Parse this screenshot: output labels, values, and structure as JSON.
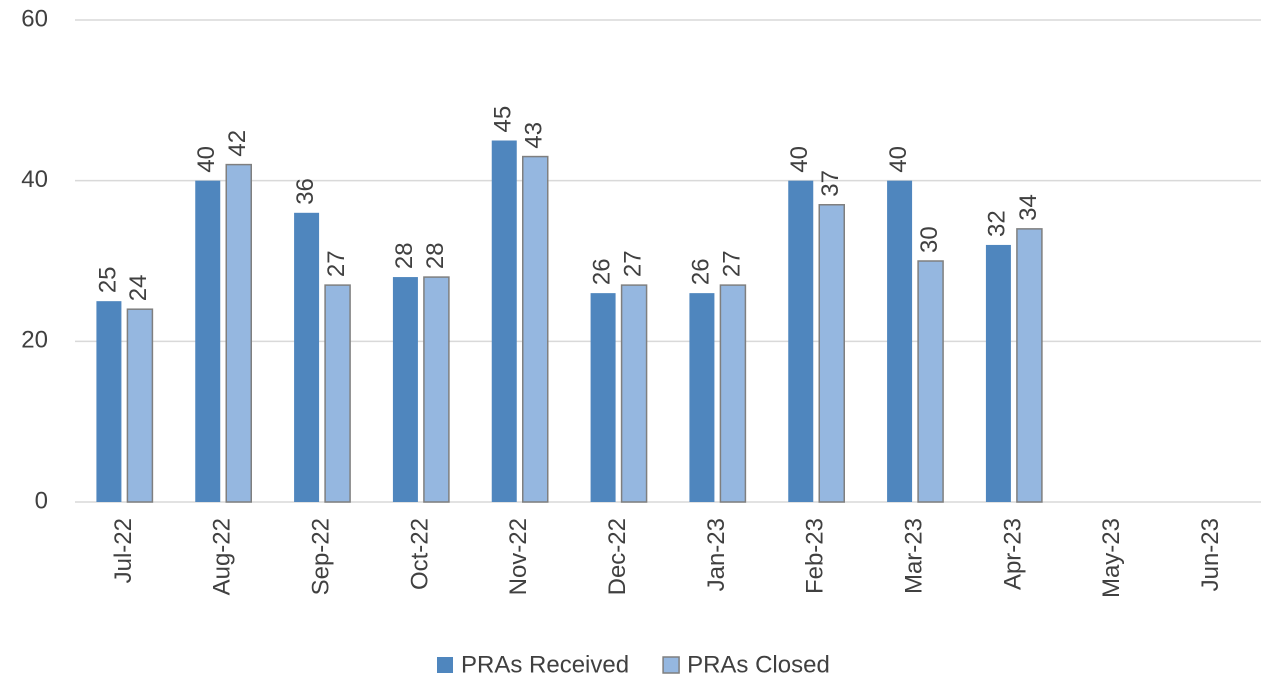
{
  "chart_data": {
    "type": "bar",
    "categories": [
      "Jul-22",
      "Aug-22",
      "Sep-22",
      "Oct-22",
      "Nov-22",
      "Dec-22",
      "Jan-23",
      "Feb-23",
      "Mar-23",
      "Apr-23",
      "May-23",
      "Jun-23"
    ],
    "series": [
      {
        "name": "PRAs Received",
        "color": "#4f86be",
        "values": [
          25,
          40,
          36,
          28,
          45,
          26,
          26,
          40,
          40,
          32,
          null,
          null
        ]
      },
      {
        "name": "PRAs Closed",
        "color": "#95b7e0",
        "values": [
          24,
          42,
          27,
          28,
          43,
          27,
          27,
          37,
          30,
          34,
          null,
          null
        ]
      }
    ],
    "ylim": [
      0,
      60
    ],
    "yticks": [
      0,
      20,
      40,
      60
    ],
    "grid": true,
    "legend": "bottom"
  }
}
